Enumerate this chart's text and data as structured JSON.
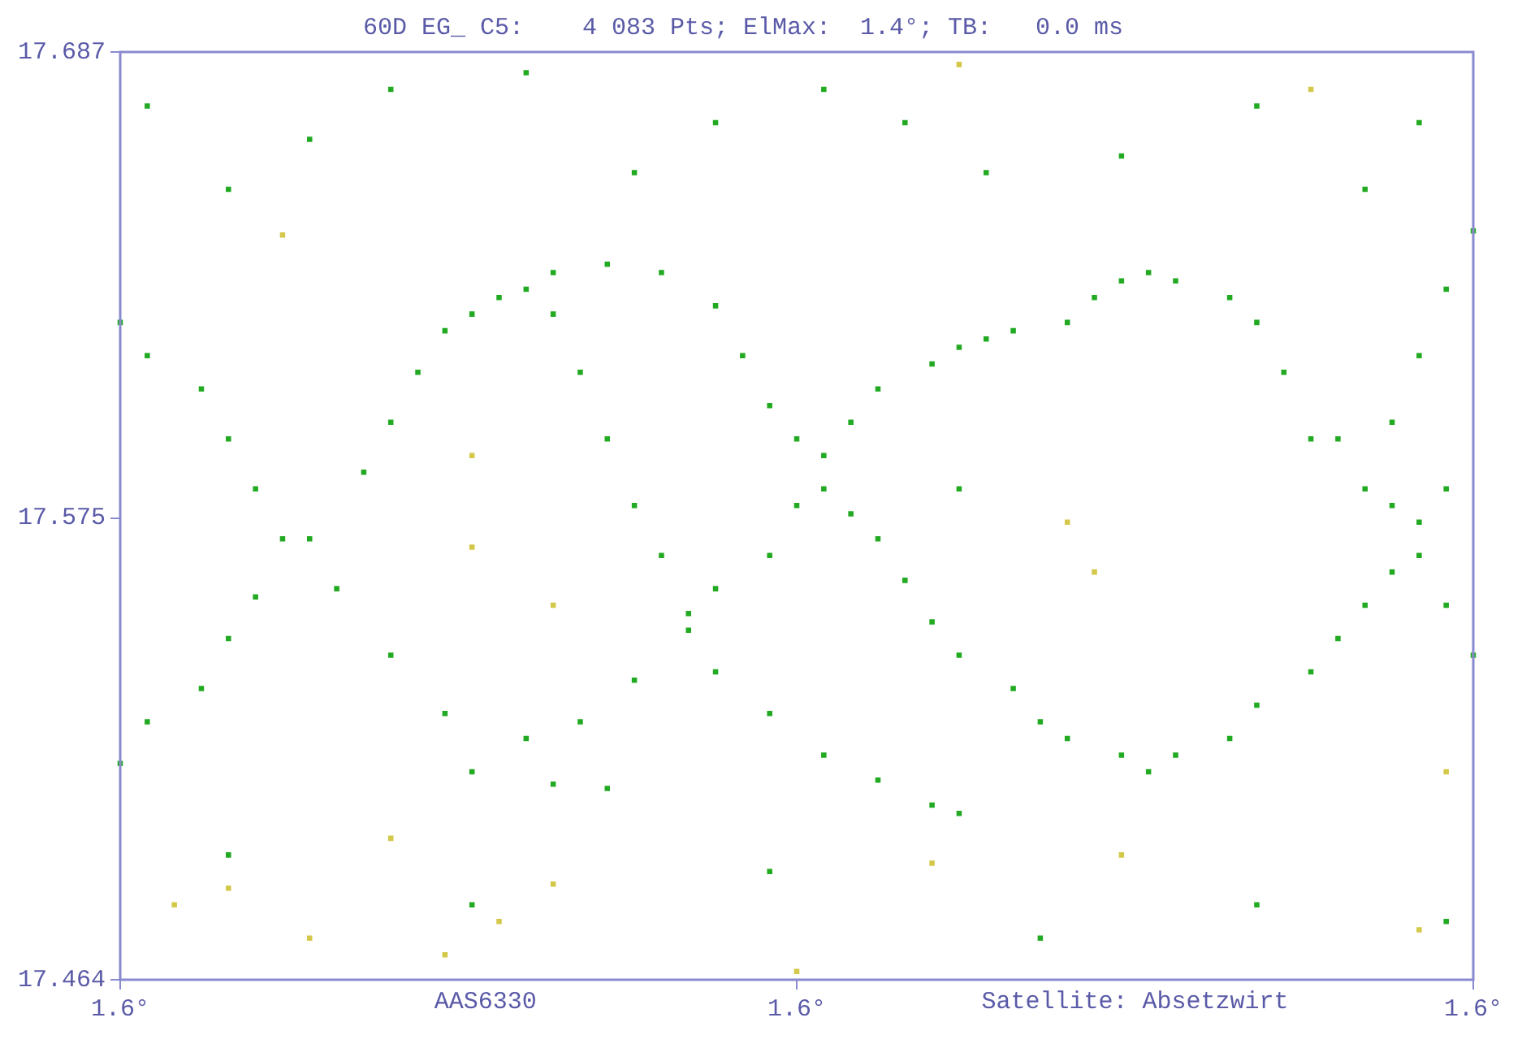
{
  "chart_data": {
    "type": "scatter",
    "title": "60D EG_ C5:    4 083 Pts; ElMax:  1.4°; TB:   0.0 ms",
    "annotations": [
      "AAS6330",
      "Satellite: Absetzwirt"
    ],
    "categories": [
      "1.6°",
      null,
      null,
      null,
      null,
      null,
      null,
      null,
      null,
      null,
      null,
      null,
      null,
      null,
      null,
      null,
      null,
      null,
      null,
      null,
      null,
      null,
      null,
      null,
      null,
      "1.6°",
      null,
      null,
      null,
      null,
      null,
      null,
      null,
      null,
      null,
      null,
      null,
      null,
      null,
      null,
      null,
      null,
      null,
      null,
      null,
      null,
      null,
      null,
      null,
      null,
      "1.6°"
    ],
    "ylim": [
      17.464,
      17.687
    ],
    "yticks": [
      17.464,
      17.575,
      17.687
    ],
    "grid": false,
    "legend": false,
    "marker": "square",
    "series": [
      {
        "color": "#22aa22",
        "values": [
          17.516,
          17.526,
          null,
          17.534,
          17.546,
          17.556,
          null,
          17.57,
          null,
          17.586,
          17.598,
          17.61,
          17.62,
          17.624,
          17.628,
          17.63,
          17.624,
          17.61,
          17.594,
          17.578,
          17.566,
          17.552,
          17.558,
          null,
          17.566,
          17.578,
          17.59,
          17.598,
          17.606,
          null,
          17.612,
          17.616,
          17.618,
          17.62,
          null,
          17.622,
          17.628,
          17.632,
          17.634,
          17.632,
          null,
          17.628,
          17.622,
          17.61,
          17.594,
          17.594,
          null,
          17.578,
          17.566,
          17.554,
          17.542
        ]
      },
      {
        "color": "#22aa22",
        "values": [
          17.622,
          17.614,
          null,
          17.606,
          17.594,
          17.582,
          17.57,
          null,
          17.558,
          null,
          17.542,
          null,
          17.528,
          null,
          null,
          17.522,
          null,
          17.526,
          null,
          17.536,
          null,
          17.548,
          17.538,
          null,
          17.528,
          null,
          17.518,
          null,
          17.512,
          null,
          17.506,
          17.504,
          null,
          null,
          null,
          null,
          null,
          null,
          null,
          null,
          null,
          null,
          null,
          null,
          null,
          null,
          null,
          null,
          null,
          null,
          null
        ]
      },
      {
        "color": "#22aa22",
        "values": [
          null,
          null,
          null,
          null,
          null,
          null,
          null,
          null,
          null,
          null,
          null,
          null,
          null,
          null,
          null,
          null,
          17.634,
          null,
          17.636,
          null,
          17.634,
          null,
          17.626,
          17.614,
          17.602,
          17.594,
          17.582,
          17.576,
          17.57,
          17.56,
          17.55,
          17.542,
          null,
          17.534,
          17.526,
          17.522,
          null,
          17.518,
          17.514,
          17.518,
          null,
          17.522,
          17.53,
          null,
          17.538,
          17.546,
          17.554,
          17.562,
          17.574,
          17.582,
          null
        ]
      },
      {
        "color": "#22aa22",
        "values": [
          null,
          null,
          null,
          null,
          17.494,
          null,
          null,
          null,
          null,
          null,
          null,
          null,
          null,
          17.514,
          null,
          null,
          17.511,
          null,
          17.51,
          null,
          null,
          null,
          null,
          null,
          17.49,
          null,
          null,
          null,
          null,
          null,
          null,
          null,
          null,
          null,
          17.474,
          null,
          null,
          null,
          null,
          null,
          null,
          null,
          17.482,
          null,
          null,
          null,
          17.582,
          17.598,
          17.614,
          17.63,
          17.644
        ]
      },
      {
        "color": "#22aa22",
        "values": [
          null,
          17.674,
          null,
          null,
          17.654,
          null,
          null,
          17.666,
          null,
          null,
          17.678,
          null,
          null,
          17.482,
          null,
          17.682,
          null,
          null,
          null,
          17.658,
          null,
          null,
          17.67,
          null,
          null,
          null,
          17.678,
          null,
          null,
          17.67,
          null,
          17.582,
          17.658,
          null,
          null,
          null,
          null,
          17.662,
          null,
          null,
          null,
          null,
          17.674,
          null,
          null,
          null,
          17.654,
          null,
          17.67,
          17.478,
          null
        ]
      },
      {
        "color": "#d4c84a",
        "values": [
          null,
          null,
          17.482,
          null,
          17.486,
          null,
          17.643,
          17.474,
          null,
          null,
          17.498,
          null,
          17.47,
          17.59,
          17.478,
          null,
          17.487,
          null,
          null,
          null,
          null,
          null,
          null,
          null,
          null,
          17.466,
          null,
          null,
          null,
          null,
          null,
          null,
          null,
          null,
          null,
          null,
          null,
          null,
          null,
          null,
          null,
          null,
          null,
          null,
          null,
          null,
          null,
          null,
          null,
          null,
          null
        ]
      },
      {
        "color": "#d4c84a",
        "values": [
          null,
          null,
          null,
          null,
          null,
          null,
          null,
          null,
          null,
          null,
          null,
          null,
          null,
          17.568,
          null,
          null,
          17.554,
          null,
          null,
          null,
          null,
          null,
          null,
          null,
          null,
          null,
          null,
          null,
          null,
          null,
          17.492,
          17.684,
          null,
          null,
          null,
          17.574,
          17.562,
          17.494,
          null,
          null,
          null,
          null,
          null,
          null,
          17.678,
          null,
          null,
          null,
          17.476,
          17.514,
          null
        ]
      }
    ]
  }
}
